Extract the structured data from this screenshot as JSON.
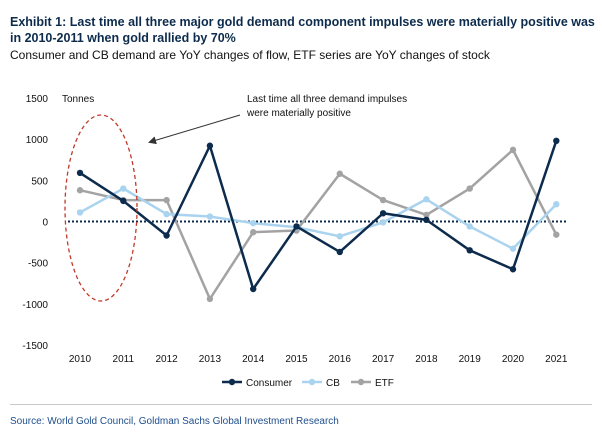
{
  "title": "Exhibit 1: Last time all three major gold demand component impulses were materially positive was in 2010-2011 when gold rallied by 70%",
  "subtitle": "Consumer and CB demand are YoY changes of flow, ETF series are YoY changes of stock",
  "source": "Source: World Gold Council, Goldman Sachs Global Investment Research",
  "chart_data": {
    "type": "line",
    "ylabel": "Tonnes",
    "ylim": [
      -1500,
      1500
    ],
    "yticks": [
      "1500",
      "1000",
      "500",
      "0",
      "-500",
      "-1000",
      "-1500"
    ],
    "categories": [
      "2010",
      "2011",
      "2012",
      "2013",
      "2014",
      "2015",
      "2016",
      "2017",
      "2018",
      "2019",
      "2020",
      "2021"
    ],
    "annotation": "Last time all three demand impulses were materially positive",
    "series": [
      {
        "name": "Consumer",
        "color": "#0d2b4c",
        "values": [
          590,
          250,
          -170,
          920,
          -820,
          -60,
          -370,
          100,
          20,
          -350,
          -580,
          980
        ]
      },
      {
        "name": "CB",
        "color": "#a9d3ee",
        "values": [
          110,
          400,
          90,
          60,
          -20,
          -70,
          -180,
          -10,
          270,
          -60,
          -330,
          210
        ]
      },
      {
        "name": "ETF",
        "color": "#a3a3a3",
        "values": [
          380,
          260,
          260,
          -940,
          -130,
          -110,
          580,
          260,
          80,
          400,
          870,
          -160
        ]
      }
    ]
  }
}
